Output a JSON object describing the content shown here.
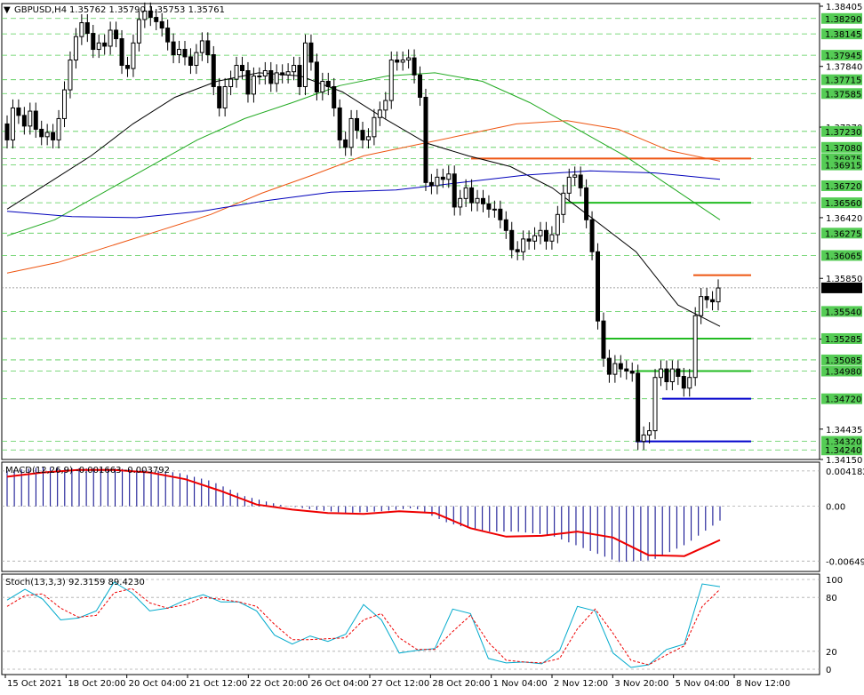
{
  "header": {
    "symbol_text": "GBPUSD,H4",
    "ohlc_text": "1.35762 1.35790 1.35753 1.35761"
  },
  "colors": {
    "grid": "#aaaaaa",
    "level_guide": "#55cc55",
    "level_label_bg": "#55cc55",
    "candle": "#000000",
    "ma_black": "#000000",
    "ma_green": "#22aa22",
    "ma_orange": "#ee5511",
    "ma_blue": "#0000bb",
    "resistance": "#ee5511",
    "support_green": "#22bb22",
    "support_blue": "#0000cc",
    "macd_hist": "#000088",
    "macd_signal": "#ee0000",
    "stoch_main": "#00aacc",
    "stoch_signal": "#ee0000"
  },
  "chart_data": [
    {
      "type": "line",
      "title": "GBPUSD,H4",
      "subtitle": "1.35762 1.35790 1.35753 1.35761",
      "y_tick_labels": [
        "1.38405",
        "1.37840",
        "1.37270",
        "1.36420",
        "1.35850",
        "1.35280",
        "1.34435",
        "1.34150"
      ],
      "ylim": [
        1.3415,
        1.3843
      ],
      "x_tick_labels": [
        "15 Oct 2021",
        "18 Oct 20:00",
        "20 Oct 04:00",
        "21 Oct 12:00",
        "22 Oct 20:00",
        "26 Oct 04:00",
        "27 Oct 12:00",
        "28 Oct 20:00",
        "1 Nov 04:00",
        "2 Nov 12:00",
        "3 Nov 20:00",
        "5 Nov 04:00",
        "8 Nov 12:00"
      ],
      "level_labels": [
        "1.38290",
        "1.38145",
        "1.37945",
        "1.37715",
        "1.37585",
        "1.37230",
        "1.37080",
        "1.36975",
        "1.36915",
        "1.36720",
        "1.36560",
        "1.36275",
        "1.36065",
        "1.35761",
        "1.35540",
        "1.35285",
        "1.35085",
        "1.34980",
        "1.34720",
        "1.34320",
        "1.34240"
      ],
      "current_price": 1.35761,
      "candles_close": [
        1.3715,
        1.3745,
        1.3738,
        1.3728,
        1.3742,
        1.3725,
        1.3718,
        1.3722,
        1.3715,
        1.3735,
        1.3762,
        1.379,
        1.3812,
        1.3825,
        1.3815,
        1.38,
        1.3806,
        1.3803,
        1.3818,
        1.381,
        1.3785,
        1.3782,
        1.3806,
        1.3828,
        1.3836,
        1.383,
        1.3826,
        1.382,
        1.3807,
        1.3795,
        1.38,
        1.3793,
        1.3785,
        1.3797,
        1.3808,
        1.3795,
        1.3765,
        1.3745,
        1.3765,
        1.3772,
        1.3785,
        1.378,
        1.3758,
        1.3775,
        1.3775,
        1.378,
        1.3768,
        1.3778,
        1.3776,
        1.3779,
        1.3785,
        1.3765,
        1.3806,
        1.3788,
        1.376,
        1.377,
        1.3765,
        1.3745,
        1.3715,
        1.3708,
        1.3735,
        1.3724,
        1.3715,
        1.3718,
        1.3736,
        1.3743,
        1.3752,
        1.379,
        1.3788,
        1.379,
        1.3792,
        1.3776,
        1.3755,
        1.3675,
        1.3672,
        1.368,
        1.3678,
        1.3683,
        1.3652,
        1.366,
        1.367,
        1.3656,
        1.366,
        1.3655,
        1.365,
        1.365,
        1.364,
        1.363,
        1.3612,
        1.361,
        1.3622,
        1.362,
        1.3625,
        1.363,
        1.362,
        1.3626,
        1.3645,
        1.3665,
        1.368,
        1.3682,
        1.367,
        1.364,
        1.361,
        1.3545,
        1.351,
        1.3495,
        1.3505,
        1.35,
        1.3498,
        1.3496,
        1.3432,
        1.3438,
        1.3442,
        1.3492,
        1.35,
        1.3488,
        1.35,
        1.3493,
        1.3482,
        1.3492,
        1.355,
        1.3568,
        1.3565,
        1.3563,
        1.3576
      ],
      "horizontal_levels": [
        {
          "kind": "resistance",
          "price": 1.36975
        },
        {
          "kind": "support",
          "price": 1.3656
        },
        {
          "kind": "resistance",
          "price": 1.3588
        },
        {
          "kind": "support",
          "price": 1.35285
        },
        {
          "kind": "support",
          "price": 1.3498
        },
        {
          "kind": "support",
          "price": 1.3472
        },
        {
          "kind": "support",
          "price": 1.3432
        }
      ],
      "series": [
        {
          "name": "",
          "color_key": "ma_black",
          "y": [
            1.365,
            1.3675,
            1.37,
            1.373,
            1.3755,
            1.377,
            1.3778,
            1.3775,
            1.376,
            1.3735,
            1.3712,
            1.37,
            1.369,
            1.367,
            1.364,
            1.361,
            1.356,
            1.354
          ]
        },
        {
          "name": "",
          "color_key": "ma_green",
          "y": [
            1.3625,
            1.364,
            1.3665,
            1.369,
            1.3715,
            1.3735,
            1.375,
            1.3766,
            1.3775,
            1.3778,
            1.377,
            1.375,
            1.3725,
            1.37,
            1.367,
            1.364
          ]
        },
        {
          "name": "",
          "color_key": "ma_orange",
          "y": [
            1.359,
            1.36,
            1.3615,
            1.363,
            1.3645,
            1.3665,
            1.3682,
            1.37,
            1.371,
            1.372,
            1.373,
            1.3733,
            1.3725,
            1.3705,
            1.3695
          ]
        },
        {
          "name": "",
          "color_key": "ma_blue",
          "y": [
            1.3648,
            1.3643,
            1.3642,
            1.3648,
            1.3658,
            1.3666,
            1.3668,
            1.3675,
            1.3682,
            1.3686,
            1.3684,
            1.3678
          ]
        }
      ]
    },
    {
      "type": "bar",
      "title": "MACD(12,26,9) -0.001663 -0.003792",
      "y_tick_labels": [
        "0.004182",
        "0.00",
        "-0.006491"
      ],
      "ylim": [
        -0.0073,
        0.0048
      ],
      "values": [
        0.0042,
        0.0046,
        0.0045,
        0.0045,
        0.0043,
        0.004,
        0.003,
        0.0012,
        0.0002,
        -0.0004,
        -0.0008,
        -0.0006,
        -0.0002,
        -0.002,
        -0.003,
        -0.003,
        -0.0034,
        -0.005,
        -0.0066,
        -0.0064,
        -0.0045,
        -0.0017
      ],
      "signal": [
        0.0035,
        0.004,
        0.0043,
        0.0043,
        0.004,
        0.0032,
        0.0018,
        0.0002,
        -0.0004,
        -0.0008,
        -0.0009,
        -0.0006,
        -0.0008,
        -0.0026,
        -0.0036,
        -0.0035,
        -0.003,
        -0.0037,
        -0.0058,
        -0.0059,
        -0.004
      ]
    },
    {
      "type": "line",
      "title": "Stoch(13,3,3) 92.3159 89.4230",
      "y_tick_labels": [
        "100",
        "80",
        "20",
        "0"
      ],
      "ylim": [
        0,
        100
      ],
      "series": [
        {
          "name": "",
          "color_key": "stoch_main",
          "y": [
            77,
            89,
            78,
            55,
            57,
            65,
            97,
            85,
            65,
            68,
            77,
            83,
            75,
            75,
            65,
            38,
            28,
            37,
            31,
            39,
            72,
            55,
            18,
            21,
            23,
            67,
            62,
            12,
            7,
            8,
            6,
            21,
            70,
            65,
            18,
            2,
            5,
            22,
            28,
            95,
            92
          ]
        },
        {
          "name": "",
          "color_key": "stoch_signal",
          "y": [
            70,
            82,
            84,
            68,
            58,
            60,
            85,
            90,
            74,
            68,
            72,
            80,
            78,
            75,
            70,
            50,
            33,
            33,
            34,
            35,
            55,
            62,
            35,
            22,
            22,
            42,
            60,
            30,
            10,
            8,
            7,
            12,
            45,
            67,
            40,
            10,
            5,
            16,
            26,
            70,
            89
          ]
        }
      ]
    }
  ]
}
